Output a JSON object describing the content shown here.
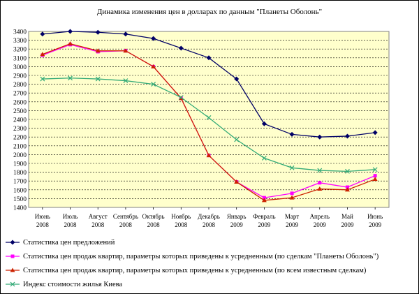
{
  "chart_data": {
    "type": "line",
    "title": "Динамика изменения цен в долларах по данным \"Планеты Оболонь\"",
    "xlabel": "",
    "ylabel": "",
    "ylim": [
      1400,
      3400
    ],
    "yticks": [
      1400,
      1500,
      1600,
      1700,
      1800,
      1900,
      2000,
      2100,
      2200,
      2300,
      2400,
      2500,
      2600,
      2700,
      2800,
      2900,
      3000,
      3100,
      3200,
      3300,
      3400
    ],
    "categories": [
      [
        "Июнь",
        "2008"
      ],
      [
        "Июль",
        "2008"
      ],
      [
        "Август",
        "2008"
      ],
      [
        "Сентябрь",
        "2008"
      ],
      [
        "Октябрь",
        "2008"
      ],
      [
        "Ноябрь",
        "2008"
      ],
      [
        "Декабрь",
        "2008"
      ],
      [
        "Январь",
        "2009"
      ],
      [
        "Февраль",
        "2009"
      ],
      [
        "Март",
        "2009"
      ],
      [
        "Апрель",
        "2009"
      ],
      [
        "Май",
        "2009"
      ],
      [
        "Июнь",
        "2009"
      ]
    ],
    "grid": true,
    "plot_background": "#ffffcc",
    "legend_position": "bottom",
    "series": [
      {
        "name": "Статистика цен предложений",
        "color": "#000066",
        "marker": "diamond",
        "values": [
          3370,
          3400,
          3390,
          3370,
          3320,
          3210,
          3100,
          2860,
          2350,
          2230,
          2200,
          2210,
          2250
        ]
      },
      {
        "name": "Статистика цен продаж квартир, параметры которых приведены к усредненным (по сделкам \"Планеты Оболонь\")",
        "color": "#ff00ff",
        "marker": "square",
        "values": [
          3130,
          3250,
          3170,
          3180,
          3000,
          2640,
          1990,
          1690,
          1510,
          1560,
          1680,
          1630,
          1760
        ]
      },
      {
        "name": "Статистика цен продаж квартир, параметры которых приведены к усредненным (по всем известным сделкам)",
        "color": "#cc2200",
        "marker": "triangle",
        "values": [
          3140,
          3260,
          3180,
          3180,
          3000,
          2640,
          1990,
          1690,
          1480,
          1510,
          1610,
          1600,
          1720
        ]
      },
      {
        "name": "Индекс стоимости жилья Киева",
        "color": "#33aa77",
        "marker": "x",
        "values": [
          2860,
          2870,
          2860,
          2840,
          2800,
          2650,
          2420,
          2170,
          1960,
          1850,
          1820,
          1810,
          1830
        ]
      }
    ]
  }
}
